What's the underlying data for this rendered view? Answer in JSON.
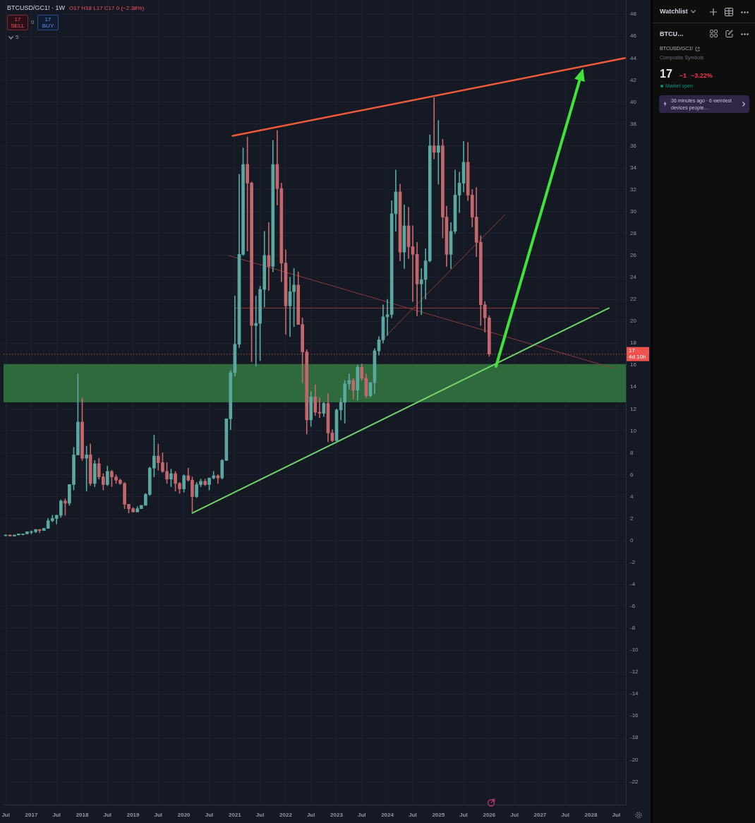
{
  "chart_data": [
    {
      "type": "candlestick",
      "title": "BTCUSD/GC1! · 1W",
      "annotations": [
        "O17 H18 L17 C17 0 (−2.38%)",
        "17",
        "SELL",
        "0",
        "17",
        "BUY",
        "5",
        {
          "text": "4d 10h",
          "y": 17
        }
      ],
      "x": [
        "2016-07",
        "2016-08",
        "2016-09",
        "2016-10",
        "2016-11",
        "2016-12",
        "2017-01",
        "2017-02",
        "2017-03",
        "2017-04",
        "2017-05",
        "2017-06",
        "2017-07",
        "2017-08",
        "2017-09",
        "2017-10",
        "2017-11",
        "2017-12",
        "2018-01",
        "2018-02",
        "2018-03",
        "2018-04",
        "2018-05",
        "2018-06",
        "2018-07",
        "2018-08",
        "2018-09",
        "2018-10",
        "2018-11",
        "2018-12",
        "2019-01",
        "2019-02",
        "2019-03",
        "2019-04",
        "2019-05",
        "2019-06",
        "2019-07",
        "2019-08",
        "2019-09",
        "2019-10",
        "2019-11",
        "2019-12",
        "2020-01",
        "2020-02",
        "2020-03",
        "2020-04",
        "2020-05",
        "2020-06",
        "2020-07",
        "2020-08",
        "2020-09",
        "2020-10",
        "2020-11",
        "2020-12",
        "2021-01",
        "2021-02",
        "2021-03",
        "2021-04",
        "2021-05",
        "2021-06",
        "2021-07",
        "2021-08",
        "2021-09",
        "2021-10",
        "2021-11",
        "2021-12",
        "2022-01",
        "2022-02",
        "2022-03",
        "2022-04",
        "2022-05",
        "2022-06",
        "2022-07",
        "2022-08",
        "2022-09",
        "2022-10",
        "2022-11",
        "2022-12",
        "2023-01",
        "2023-02",
        "2023-03",
        "2023-04",
        "2023-05",
        "2023-06",
        "2023-07",
        "2023-08",
        "2023-09",
        "2023-10",
        "2023-11",
        "2023-12",
        "2024-01",
        "2024-02",
        "2024-03",
        "2024-04",
        "2024-05",
        "2024-06",
        "2024-07",
        "2024-08",
        "2024-09",
        "2024-10",
        "2024-11",
        "2024-12",
        "2025-01",
        "2025-02",
        "2025-03",
        "2025-04",
        "2025-05",
        "2025-06",
        "2025-07",
        "2025-08",
        "2025-09",
        "2025-10",
        "2025-11",
        "2025-12",
        "2026-01"
      ],
      "ohlc": [
        [
          0.5,
          0.5,
          0.4,
          0.5
        ],
        [
          0.5,
          0.5,
          0.4,
          0.4
        ],
        [
          0.4,
          0.5,
          0.4,
          0.5
        ],
        [
          0.5,
          0.6,
          0.5,
          0.6
        ],
        [
          0.6,
          0.6,
          0.5,
          0.6
        ],
        [
          0.6,
          0.8,
          0.6,
          0.8
        ],
        [
          0.8,
          0.9,
          0.6,
          0.8
        ],
        [
          0.8,
          1.0,
          0.7,
          1.0
        ],
        [
          1.0,
          1.0,
          0.7,
          0.9
        ],
        [
          0.9,
          1.1,
          0.9,
          1.1
        ],
        [
          1.1,
          2.0,
          1.1,
          1.8
        ],
        [
          1.8,
          2.3,
          1.7,
          2.0
        ],
        [
          2.0,
          2.3,
          1.5,
          2.3
        ],
        [
          2.3,
          3.7,
          2.1,
          3.6
        ],
        [
          3.6,
          3.8,
          2.3,
          3.4
        ],
        [
          3.4,
          5.1,
          3.2,
          5.1
        ],
        [
          5.1,
          8.5,
          4.6,
          7.8
        ],
        [
          7.8,
          15.2,
          7.8,
          10.8
        ],
        [
          10.8,
          13.0,
          7.3,
          7.5
        ],
        [
          7.5,
          8.6,
          4.5,
          7.8
        ],
        [
          7.8,
          8.8,
          5.0,
          5.2
        ],
        [
          5.2,
          7.3,
          4.9,
          7.0
        ],
        [
          7.0,
          7.5,
          5.6,
          5.8
        ],
        [
          5.8,
          6.1,
          4.6,
          5.1
        ],
        [
          5.1,
          6.8,
          5.0,
          6.3
        ],
        [
          6.3,
          6.4,
          4.9,
          5.8
        ],
        [
          5.8,
          6.0,
          5.2,
          5.5
        ],
        [
          5.5,
          5.6,
          5.1,
          5.2
        ],
        [
          5.2,
          5.3,
          2.9,
          3.3
        ],
        [
          3.3,
          3.3,
          2.5,
          2.9
        ],
        [
          2.9,
          3.0,
          2.6,
          2.6
        ],
        [
          2.6,
          3.1,
          2.6,
          2.9
        ],
        [
          2.9,
          3.2,
          2.9,
          3.2
        ],
        [
          3.2,
          4.3,
          3.2,
          4.2
        ],
        [
          4.2,
          6.7,
          4.1,
          6.6
        ],
        [
          6.6,
          9.6,
          5.8,
          7.7
        ],
        [
          7.7,
          8.8,
          6.4,
          7.1
        ],
        [
          7.1,
          8.0,
          6.2,
          6.3
        ],
        [
          6.3,
          7.1,
          5.2,
          5.6
        ],
        [
          5.6,
          6.5,
          4.9,
          6.1
        ],
        [
          6.1,
          6.3,
          4.5,
          5.2
        ],
        [
          5.2,
          5.3,
          4.3,
          4.7
        ],
        [
          4.7,
          6.0,
          4.4,
          5.9
        ],
        [
          5.9,
          6.6,
          5.4,
          5.5
        ],
        [
          5.5,
          5.8,
          2.6,
          4.0
        ],
        [
          4.0,
          5.3,
          3.9,
          5.1
        ],
        [
          5.1,
          5.6,
          4.9,
          5.4
        ],
        [
          5.4,
          5.6,
          5.0,
          5.1
        ],
        [
          5.1,
          5.7,
          4.6,
          5.7
        ],
        [
          5.7,
          6.3,
          5.6,
          5.9
        ],
        [
          5.9,
          6.0,
          5.2,
          5.7
        ],
        [
          5.7,
          7.4,
          5.6,
          7.3
        ],
        [
          7.3,
          11.1,
          7.3,
          11.1
        ],
        [
          11.1,
          15.5,
          10.1,
          15.3
        ],
        [
          15.3,
          22.3,
          15.0,
          17.9
        ],
        [
          17.9,
          33.4,
          17.6,
          26.1
        ],
        [
          26.1,
          35.8,
          26.0,
          34.3
        ],
        [
          34.3,
          36.8,
          26.4,
          32.6
        ],
        [
          32.6,
          32.7,
          16.3,
          19.6
        ],
        [
          19.6,
          22.3,
          15.9,
          19.8
        ],
        [
          19.8,
          23.2,
          16.4,
          22.9
        ],
        [
          22.9,
          28.2,
          21.3,
          26.0
        ],
        [
          26.0,
          29.0,
          22.8,
          25.0
        ],
        [
          25.0,
          36.5,
          24.5,
          34.3
        ],
        [
          34.3,
          37.4,
          30.6,
          32.1
        ],
        [
          32.1,
          32.6,
          23.6,
          25.3
        ],
        [
          25.3,
          26.5,
          18.8,
          21.4
        ],
        [
          21.4,
          24.0,
          18.6,
          22.7
        ],
        [
          22.7,
          24.8,
          19.5,
          23.3
        ],
        [
          23.3,
          24.5,
          19.7,
          19.7
        ],
        [
          19.7,
          20.3,
          14.4,
          17.2
        ],
        [
          17.2,
          17.4,
          9.7,
          11.0
        ],
        [
          11.0,
          13.6,
          10.4,
          13.1
        ],
        [
          13.1,
          14.2,
          11.4,
          11.7
        ],
        [
          11.7,
          13.0,
          11.2,
          11.6
        ],
        [
          11.6,
          12.6,
          11.3,
          12.5
        ],
        [
          12.5,
          13.4,
          9.0,
          9.8
        ],
        [
          9.8,
          10.1,
          9.0,
          9.1
        ],
        [
          9.1,
          12.0,
          9.0,
          11.9
        ],
        [
          11.9,
          13.0,
          11.0,
          12.6
        ],
        [
          12.6,
          14.6,
          10.7,
          14.3
        ],
        [
          14.3,
          15.2,
          13.8,
          14.6
        ],
        [
          14.6,
          14.8,
          12.9,
          13.7
        ],
        [
          13.7,
          16.0,
          12.8,
          15.8
        ],
        [
          15.8,
          16.1,
          14.6,
          14.8
        ],
        [
          14.8,
          15.2,
          13.0,
          13.2
        ],
        [
          13.2,
          14.4,
          13.1,
          14.4
        ],
        [
          14.4,
          17.5,
          13.4,
          17.3
        ],
        [
          17.3,
          18.6,
          16.9,
          18.3
        ],
        [
          18.3,
          21.5,
          18.0,
          20.4
        ],
        [
          20.4,
          22.0,
          18.7,
          20.6
        ],
        [
          20.6,
          31.0,
          20.3,
          29.8
        ],
        [
          29.8,
          33.8,
          28.2,
          31.8
        ],
        [
          31.8,
          32.5,
          25.5,
          26.3
        ],
        [
          26.3,
          30.6,
          24.8,
          28.7
        ],
        [
          28.7,
          30.4,
          25.7,
          26.8
        ],
        [
          26.8,
          28.7,
          21.8,
          26.1
        ],
        [
          26.1,
          27.2,
          20.5,
          23.4
        ],
        [
          23.4,
          24.8,
          20.6,
          23.8
        ],
        [
          23.8,
          26.6,
          22.0,
          25.5
        ],
        [
          25.5,
          37.0,
          25.4,
          36.0
        ],
        [
          36.0,
          40.4,
          34.8,
          35.4
        ],
        [
          35.4,
          38.3,
          32.5,
          36.0
        ],
        [
          36.0,
          36.6,
          27.6,
          29.5
        ],
        [
          29.5,
          30.5,
          25.0,
          26.1
        ],
        [
          26.1,
          29.0,
          24.8,
          28.2
        ],
        [
          28.2,
          33.8,
          28.0,
          31.5
        ],
        [
          31.5,
          33.6,
          29.9,
          32.6
        ],
        [
          32.6,
          36.4,
          31.8,
          34.5
        ],
        [
          34.5,
          36.3,
          31.0,
          31.5
        ],
        [
          31.5,
          32.0,
          28.6,
          29.5
        ],
        [
          29.5,
          32.2,
          25.9,
          27.2
        ],
        [
          27.2,
          27.8,
          19.6,
          21.5
        ],
        [
          21.5,
          21.8,
          19.0,
          20.3
        ],
        [
          20.3,
          20.5,
          16.8,
          17.0
        ]
      ],
      "colors": [
        "#5aa8a0",
        "#c4676d",
        "#5aa8a0",
        "#5aa8a0",
        "#5aa8a0",
        "#5aa8a0",
        "#5aa8a0",
        "#5aa8a0",
        "#c4676d",
        "#5aa8a0",
        "#5aa8a0",
        "#5aa8a0",
        "#5aa8a0",
        "#5aa8a0",
        "#c4676d",
        "#5aa8a0",
        "#5aa8a0",
        "#5aa8a0",
        "#c4676d",
        "#5aa8a0",
        "#c4676d",
        "#5aa8a0",
        "#c4676d",
        "#c4676d",
        "#5aa8a0",
        "#c4676d",
        "#c4676d",
        "#c4676d",
        "#c4676d",
        "#c4676d",
        "#c4676d",
        "#5aa8a0",
        "#5aa8a0",
        "#5aa8a0",
        "#5aa8a0",
        "#5aa8a0",
        "#c4676d",
        "#c4676d",
        "#c4676d",
        "#5aa8a0",
        "#c4676d",
        "#c4676d",
        "#5aa8a0",
        "#c4676d",
        "#c4676d",
        "#5aa8a0",
        "#5aa8a0",
        "#c4676d",
        "#5aa8a0",
        "#5aa8a0",
        "#c4676d",
        "#5aa8a0",
        "#5aa8a0",
        "#5aa8a0",
        "#5aa8a0",
        "#5aa8a0",
        "#5aa8a0",
        "#c4676d",
        "#c4676d",
        "#5aa8a0",
        "#5aa8a0",
        "#5aa8a0",
        "#c4676d",
        "#5aa8a0",
        "#c4676d",
        "#c4676d",
        "#c4676d",
        "#5aa8a0",
        "#5aa8a0",
        "#c4676d",
        "#c4676d",
        "#c4676d",
        "#5aa8a0",
        "#c4676d",
        "#c4676d",
        "#5aa8a0",
        "#c4676d",
        "#c4676d",
        "#5aa8a0",
        "#5aa8a0",
        "#5aa8a0",
        "#5aa8a0",
        "#c4676d",
        "#5aa8a0",
        "#c4676d",
        "#c4676d",
        "#5aa8a0",
        "#5aa8a0",
        "#5aa8a0",
        "#5aa8a0",
        "#5aa8a0",
        "#5aa8a0",
        "#5aa8a0",
        "#c4676d",
        "#5aa8a0",
        "#c4676d",
        "#c4676d",
        "#c4676d",
        "#5aa8a0",
        "#5aa8a0",
        "#5aa8a0",
        "#c4676d",
        "#5aa8a0",
        "#c4676d",
        "#c4676d",
        "#5aa8a0",
        "#5aa8a0",
        "#5aa8a0",
        "#5aa8a0",
        "#c4676d",
        "#c4676d",
        "#c4676d",
        "#c4676d",
        "#c4676d",
        "#c4676d"
      ],
      "series": [
        {
          "type": "line",
          "color": "#ee5a3a",
          "x": [
            "2020-12-15",
            "2028-09-01"
          ],
          "values": [
            36.9,
            44.0
          ]
        },
        {
          "type": "line",
          "color": "#72d36c",
          "x": [
            "2020-03-01",
            "2028-05-10"
          ],
          "values": [
            2.5,
            21.2
          ]
        },
        {
          "type": "line",
          "color": "#8c3b3b",
          "x": [
            "2021-01-01",
            "2028-02-25"
          ],
          "values": [
            21.2,
            21.2
          ]
        },
        {
          "type": "line",
          "color": "#8c3b3b",
          "x": [
            "2020-11-15",
            "2028-06-15"
          ],
          "values": [
            26.0,
            15.7
          ]
        },
        {
          "type": "line",
          "color": "#8c3b3b",
          "x": [
            "2023-11-10",
            "2026-04-22"
          ],
          "values": [
            18.1,
            29.7
          ]
        }
      ],
      "ref_lines": [
        {
          "axis": "y",
          "value": 17,
          "label": "17",
          "color": "#ef5350",
          "line_style": "dotted"
        }
      ],
      "bands": [
        {
          "axis": "y",
          "from": 12.6,
          "to": 16.1,
          "color": "#2e6a3b"
        }
      ],
      "xlim": [
        "2016-06-15",
        "2028-09-08"
      ],
      "xticks": [
        {
          "value": "2016-07",
          "label": "Jul"
        },
        "2017",
        {
          "value": "2017-07",
          "label": "Jul"
        },
        "2018",
        {
          "value": "2018-07",
          "label": "Jul"
        },
        "2019",
        {
          "value": "2019-07",
          "label": "Jul"
        },
        "2020",
        {
          "value": "2020-07",
          "label": "Jul"
        },
        "2021",
        {
          "value": "2021-07",
          "label": "Jul"
        },
        "2022",
        {
          "value": "2022-07",
          "label": "Jul"
        },
        "2023",
        {
          "value": "2023-07",
          "label": "Jul"
        },
        "2024",
        {
          "value": "2024-07",
          "label": "Jul"
        },
        "2025",
        {
          "value": "2025-07",
          "label": "Jul"
        },
        "2026",
        {
          "value": "2026-07",
          "label": "Jul"
        },
        "2027",
        {
          "value": "2027-07",
          "label": "Jul"
        },
        "2028",
        {
          "value": "2028-07",
          "label": "Jul"
        }
      ],
      "ylim": [
        -24.1,
        49.3
      ],
      "yticks": [
        -22,
        -20,
        -18,
        -16,
        -14,
        -12,
        -10,
        -8,
        -6,
        -4,
        -2,
        0,
        2,
        4,
        6,
        8,
        10,
        12,
        14,
        16,
        18,
        20,
        22,
        24,
        26,
        28,
        30,
        32,
        34,
        36,
        38,
        40,
        42,
        44,
        46,
        48
      ],
      "grid": true
    },
    {
      "type": "other",
      "title": "Watchlist",
      "annotations": [
        "BTCU…",
        "BTCUSD/GC1!",
        "Composite Symbols",
        "17",
        "−1",
        "−3.22%",
        "Market open",
        "36 minutes ago · 6 weirdest devices people…"
      ]
    }
  ]
}
